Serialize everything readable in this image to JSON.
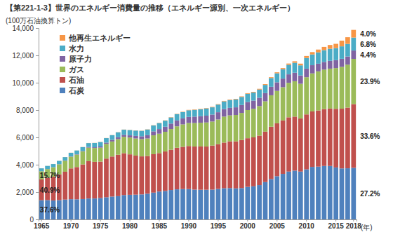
{
  "chart_data": {
    "type": "bar",
    "stacked": true,
    "grid": false,
    "legend": "upper left",
    "title": "【第221-1-3】世界のエネルギー消費量の推移（エネルギー源別、一次エネルギー）",
    "y_label": "(100万石油換算トン)",
    "x_label": "(年)",
    "ylim": [
      0,
      14000
    ],
    "yticks": [
      0,
      {
        "value": 2000,
        "label": "2,000"
      },
      {
        "value": 4000,
        "label": "4,000"
      },
      {
        "value": 6000,
        "label": "6,000"
      },
      {
        "value": 8000,
        "label": "8,000"
      },
      {
        "value": 10000,
        "label": "10,000"
      },
      {
        "value": 12000,
        "label": "12,000"
      },
      {
        "value": 14000,
        "label": "14,000"
      }
    ],
    "categories": [
      "1965",
      null,
      null,
      null,
      null,
      "1970",
      null,
      null,
      null,
      null,
      "1975",
      null,
      null,
      null,
      null,
      "1980",
      null,
      null,
      null,
      null,
      "1985",
      null,
      null,
      null,
      null,
      "1990",
      null,
      null,
      null,
      null,
      "1995",
      null,
      null,
      null,
      null,
      "2000",
      null,
      null,
      null,
      null,
      "2005",
      null,
      null,
      null,
      null,
      "2010",
      null,
      null,
      null,
      null,
      "2015",
      null,
      null,
      "2018"
    ],
    "series": [
      {
        "name": "石炭",
        "color": "#4f81bd",
        "start_label": "37.6%",
        "end_label": "27.2%",
        "values": [
          1400,
          1410,
          1380,
          1410,
          1450,
          1480,
          1470,
          1490,
          1530,
          1530,
          1560,
          1620,
          1670,
          1700,
          1780,
          1800,
          1810,
          1830,
          1880,
          1960,
          2040,
          2080,
          2150,
          2200,
          2220,
          2220,
          2180,
          2170,
          2170,
          2180,
          2230,
          2280,
          2290,
          2270,
          2290,
          2380,
          2420,
          2510,
          2730,
          2950,
          3160,
          3330,
          3500,
          3570,
          3500,
          3660,
          3840,
          3860,
          3910,
          3910,
          3800,
          3730,
          3740,
          3772
        ]
      },
      {
        "name": "石油",
        "color": "#c0504d",
        "start_label": "40.9%",
        "end_label": "33.6%",
        "values": [
          1530,
          1640,
          1750,
          1890,
          2040,
          2250,
          2360,
          2530,
          2730,
          2680,
          2670,
          2830,
          2930,
          3030,
          3060,
          2960,
          2860,
          2780,
          2760,
          2810,
          2810,
          2890,
          2950,
          3040,
          3090,
          3150,
          3150,
          3170,
          3160,
          3220,
          3270,
          3340,
          3420,
          3440,
          3520,
          3560,
          3580,
          3620,
          3690,
          3830,
          3870,
          3910,
          3970,
          3950,
          3880,
          4020,
          4060,
          4110,
          4160,
          4200,
          4290,
          4370,
          4440,
          4662
        ]
      },
      {
        "name": "ガス",
        "color": "#9bbb59",
        "start_label": "15.7%",
        "end_label": "23.9%",
        "values": [
          590,
          630,
          680,
          730,
          800,
          860,
          910,
          950,
          990,
          1010,
          1020,
          1070,
          1100,
          1140,
          1200,
          1230,
          1250,
          1260,
          1280,
          1380,
          1420,
          1440,
          1510,
          1570,
          1640,
          1680,
          1720,
          1730,
          1760,
          1760,
          1810,
          1900,
          1900,
          1930,
          1980,
          2060,
          2090,
          2160,
          2220,
          2300,
          2370,
          2430,
          2520,
          2590,
          2540,
          2720,
          2780,
          2860,
          2890,
          2920,
          2980,
          3060,
          3140,
          3309
        ]
      },
      {
        "name": "原子力",
        "color": "#8064a2",
        "end_label": "4.4%",
        "values": [
          6,
          8,
          9,
          12,
          14,
          18,
          25,
          34,
          45,
          57,
          83,
          97,
          120,
          140,
          147,
          160,
          190,
          210,
          240,
          290,
          340,
          370,
          400,
          430,
          440,
          450,
          470,
          480,
          500,
          510,
          530,
          550,
          550,
          560,
          580,
          590,
          600,
          610,
          600,
          620,
          630,
          630,
          620,
          620,
          610,
          630,
          600,
          560,
          560,
          570,
          580,
          590,
          600,
          611
        ]
      },
      {
        "name": "水力",
        "color": "#4bacc6",
        "end_label": "6.8%",
        "values": [
          210,
          225,
          230,
          240,
          255,
          265,
          275,
          285,
          290,
          315,
          325,
          330,
          340,
          360,
          375,
          385,
          390,
          400,
          415,
          430,
          440,
          445,
          450,
          460,
          460,
          485,
          495,
          500,
          525,
          530,
          560,
          565,
          575,
          580,
          590,
          600,
          590,
          600,
          600,
          640,
          660,
          690,
          700,
          730,
          740,
          780,
          790,
          830,
          860,
          880,
          880,
          910,
          920,
          949
        ]
      },
      {
        "name": "他再生エネルギー",
        "color": "#f79646",
        "end_label": "4.0%",
        "values": [
          3,
          4,
          4,
          5,
          5,
          5,
          6,
          6,
          7,
          7,
          8,
          8,
          9,
          10,
          10,
          11,
          12,
          13,
          15,
          17,
          19,
          21,
          22,
          23,
          25,
          27,
          29,
          30,
          31,
          32,
          33,
          35,
          37,
          39,
          41,
          45,
          48,
          52,
          56,
          62,
          70,
          80,
          92,
          108,
          125,
          145,
          170,
          205,
          240,
          280,
          316,
          418,
          487,
          561
        ]
      }
    ]
  }
}
